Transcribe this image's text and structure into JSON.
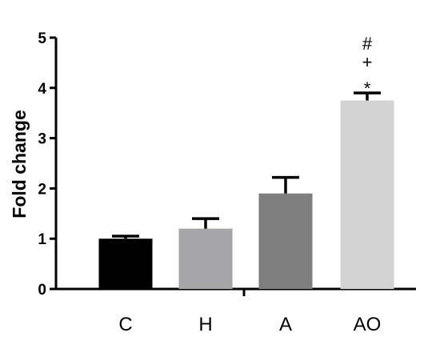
{
  "chart_data": {
    "type": "bar",
    "title": "",
    "xlabel": "",
    "ylabel": "Fold change",
    "ylim": [
      0,
      5
    ],
    "yticks": [
      0,
      1,
      2,
      3,
      4,
      5
    ],
    "grid": false,
    "categories": [
      "C",
      "H",
      "A",
      "AO"
    ],
    "values": [
      1.0,
      1.2,
      1.9,
      3.75
    ],
    "errors": [
      0.05,
      0.2,
      0.32,
      0.15
    ],
    "colors": [
      "#000000",
      "#a5a5a8",
      "#7e7e7e",
      "#d3d3d3"
    ],
    "annotations": [
      {
        "category": "AO",
        "lines": [
          "#",
          "+",
          "*"
        ]
      }
    ]
  }
}
